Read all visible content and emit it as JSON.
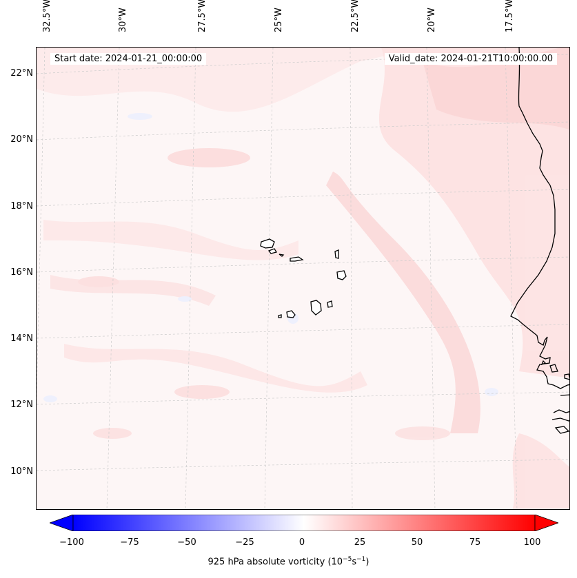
{
  "map": {
    "start_date": "Start date: 2024-01-21_00:00:00",
    "valid_date": "Valid_date: 2024-01-21T10:00:00.00",
    "lon_labels": [
      "32.5°W",
      "30°W",
      "27.5°W",
      "25°W",
      "22.5°W",
      "20°W",
      "17.5°W"
    ],
    "lat_labels": [
      "22°N",
      "20°N",
      "18°N",
      "16°N",
      "14°N",
      "12°N",
      "10°N"
    ],
    "features": [
      "Cape Verde islands",
      "West African coastline"
    ],
    "fill_colors": {
      "background": "#fdf6f6",
      "light_pink": "#fde6e6",
      "pink": "#fbd6d6",
      "light_blue": "#eef0fd"
    }
  },
  "colorbar": {
    "ticks": [
      "−100",
      "−75",
      "−50",
      "−25",
      "0",
      "25",
      "50",
      "75",
      "100"
    ],
    "min": -100,
    "max": 100,
    "label_main": "925 hPa absolute vorticity (10",
    "label_exp1": "−5",
    "label_mid": "s",
    "label_exp2": "−1",
    "label_end": ")",
    "low_color": "#0000ff",
    "mid_color": "#ffffff",
    "high_color": "#ff0000"
  }
}
